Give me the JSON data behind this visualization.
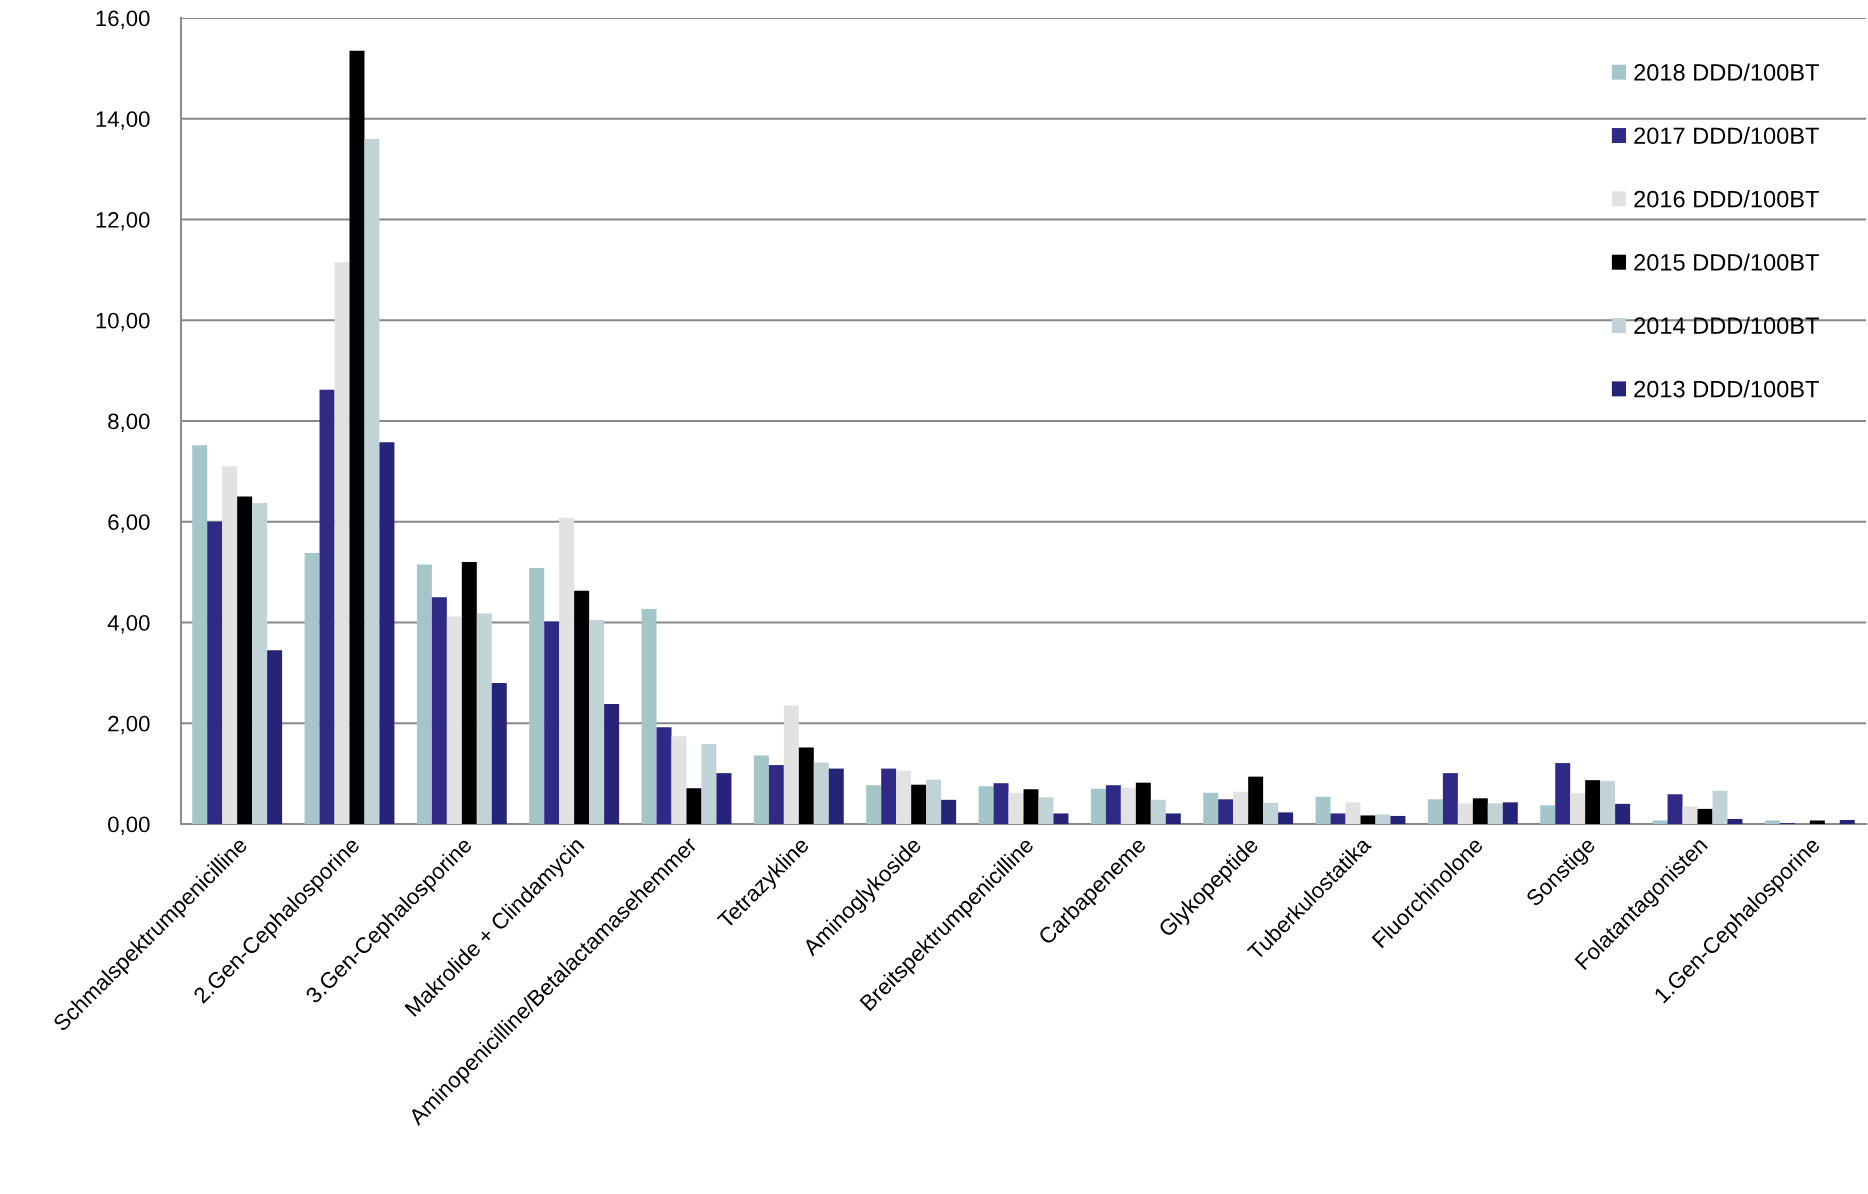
{
  "chart_data": {
    "type": "bar",
    "categories": [
      "Schmalspektrumpenicilline",
      "2.Gen-Cephalosporine",
      "3.Gen-Cephalosporine",
      "Makrolide + Clindamycin",
      "Aminopenicilline/Betalactamasehemmer",
      "Tetrazykline",
      "Aminoglykoside",
      "Breitspektrumpenicilline",
      "Carbapeneme",
      "Glykopeptide",
      "Tuberkulostatika",
      "Fluorchinolone",
      "Sonstige",
      "Folatantagonisten",
      "1.Gen-Cephalosporine"
    ],
    "series": [
      {
        "name": "2018 DDD/100BT",
        "color": "#a5c6c8",
        "values": [
          7.52,
          5.38,
          5.15,
          5.08,
          4.27,
          1.36,
          0.77,
          0.75,
          0.7,
          0.62,
          0.54,
          0.49,
          0.37,
          0.07,
          0.07
        ]
      },
      {
        "name": "2017 DDD/100BT",
        "color": "#2e2a86",
        "values": [
          6.0,
          8.62,
          4.5,
          4.02,
          1.92,
          1.17,
          1.1,
          0.81,
          0.77,
          0.49,
          0.21,
          1.01,
          1.21,
          0.59,
          0.02
        ]
      },
      {
        "name": "2016 DDD/100BT",
        "color": "#e2e2e2",
        "values": [
          7.1,
          11.15,
          4.12,
          6.08,
          1.74,
          2.35,
          1.06,
          0.62,
          0.72,
          0.64,
          0.43,
          0.41,
          0.61,
          0.35,
          null
        ]
      },
      {
        "name": "2015 DDD/100BT",
        "color": "#000000",
        "values": [
          6.5,
          15.35,
          5.2,
          4.63,
          0.71,
          1.52,
          0.78,
          0.69,
          0.82,
          0.94,
          0.17,
          0.51,
          0.87,
          0.3,
          0.07
        ]
      },
      {
        "name": "2014 DDD/100BT",
        "color": "#c1d3d6",
        "values": [
          6.37,
          13.6,
          4.18,
          4.05,
          1.59,
          1.22,
          0.88,
          0.53,
          0.48,
          0.42,
          0.19,
          0.41,
          0.85,
          0.66,
          null
        ]
      },
      {
        "name": "2013 DDD/100BT",
        "color": "#262478",
        "values": [
          3.45,
          7.58,
          2.8,
          2.38,
          1.01,
          1.1,
          0.48,
          0.21,
          0.21,
          0.23,
          0.16,
          0.43,
          0.4,
          0.1,
          0.08
        ]
      }
    ],
    "ylim": [
      0,
      16
    ],
    "yticks": [
      {
        "value": 0,
        "label": "0,00"
      },
      {
        "value": 2,
        "label": "2,00"
      },
      {
        "value": 4,
        "label": "4,00"
      },
      {
        "value": 6,
        "label": "6,00"
      },
      {
        "value": 8,
        "label": "8,00"
      },
      {
        "value": 10,
        "label": "10,00"
      },
      {
        "value": 12,
        "label": "12,00"
      },
      {
        "value": 14,
        "label": "14,00"
      },
      {
        "value": 16,
        "label": "16,00"
      }
    ],
    "grid": "y",
    "legend": "top right"
  }
}
